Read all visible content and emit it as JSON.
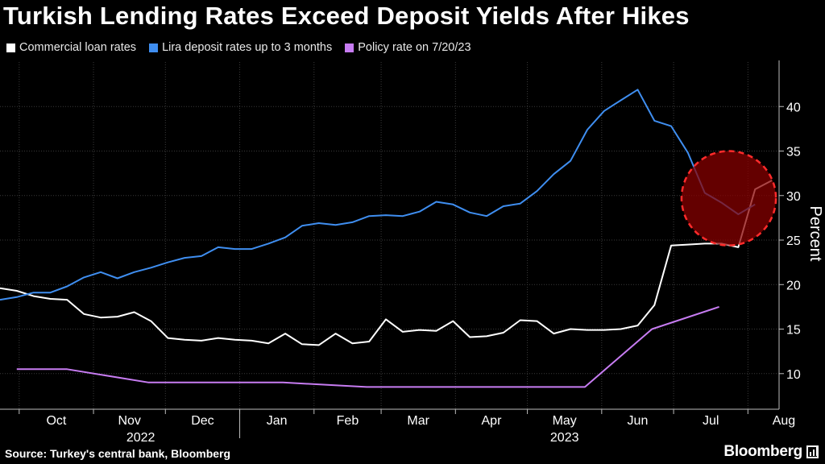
{
  "chart_data": {
    "type": "line",
    "title": "Turkish Lending Rates Exceed Deposit Yields After Hikes",
    "ylabel": "Percent",
    "ylim": [
      6,
      45
    ],
    "yticks": [
      10,
      15,
      20,
      25,
      30,
      35,
      40
    ],
    "month_ticks": [
      "Oct",
      "Nov",
      "Dec",
      "Jan",
      "Feb",
      "Mar",
      "Apr",
      "May",
      "Jun",
      "Jul",
      "Aug"
    ],
    "year_labels": [
      {
        "label": "2022",
        "month": "Nov"
      },
      {
        "label": "2023",
        "month": "May"
      }
    ],
    "x_range": [
      "2022-09-23",
      "2023-08-14"
    ],
    "grid": true,
    "legend_position": "top-left",
    "series": [
      {
        "name": "Commercial loan rates",
        "color": "#ffffff",
        "points": [
          [
            "2022-09-23",
            19.6
          ],
          [
            "2022-09-30",
            19.3
          ],
          [
            "2022-10-07",
            18.7
          ],
          [
            "2022-10-14",
            18.4
          ],
          [
            "2022-10-21",
            18.3
          ],
          [
            "2022-10-28",
            16.7
          ],
          [
            "2022-11-04",
            16.3
          ],
          [
            "2022-11-11",
            16.4
          ],
          [
            "2022-11-18",
            16.9
          ],
          [
            "2022-11-25",
            15.9
          ],
          [
            "2022-12-02",
            14.0
          ],
          [
            "2022-12-09",
            13.8
          ],
          [
            "2022-12-16",
            13.7
          ],
          [
            "2022-12-23",
            14.0
          ],
          [
            "2022-12-30",
            13.8
          ],
          [
            "2023-01-06",
            13.7
          ],
          [
            "2023-01-13",
            13.4
          ],
          [
            "2023-01-20",
            14.5
          ],
          [
            "2023-01-27",
            13.3
          ],
          [
            "2023-02-03",
            13.2
          ],
          [
            "2023-02-10",
            14.5
          ],
          [
            "2023-02-17",
            13.4
          ],
          [
            "2023-02-24",
            13.6
          ],
          [
            "2023-03-03",
            16.1
          ],
          [
            "2023-03-10",
            14.7
          ],
          [
            "2023-03-17",
            14.9
          ],
          [
            "2023-03-24",
            14.8
          ],
          [
            "2023-03-31",
            15.9
          ],
          [
            "2023-04-07",
            14.1
          ],
          [
            "2023-04-14",
            14.2
          ],
          [
            "2023-04-21",
            14.6
          ],
          [
            "2023-04-28",
            16.0
          ],
          [
            "2023-05-05",
            15.9
          ],
          [
            "2023-05-12",
            14.5
          ],
          [
            "2023-05-19",
            15.0
          ],
          [
            "2023-05-26",
            14.9
          ],
          [
            "2023-06-02",
            14.9
          ],
          [
            "2023-06-09",
            15.0
          ],
          [
            "2023-06-16",
            15.4
          ],
          [
            "2023-06-23",
            17.7
          ],
          [
            "2023-06-30",
            24.4
          ],
          [
            "2023-07-07",
            24.5
          ],
          [
            "2023-07-14",
            24.6
          ],
          [
            "2023-07-21",
            24.6
          ],
          [
            "2023-07-28",
            24.2
          ],
          [
            "2023-08-04",
            30.7
          ],
          [
            "2023-08-11",
            31.7
          ]
        ]
      },
      {
        "name": "Lira deposit rates up to 3 months",
        "color": "#3f8ef0",
        "points": [
          [
            "2022-09-23",
            18.3
          ],
          [
            "2022-09-30",
            18.6
          ],
          [
            "2022-10-07",
            19.1
          ],
          [
            "2022-10-14",
            19.1
          ],
          [
            "2022-10-21",
            19.8
          ],
          [
            "2022-10-28",
            20.8
          ],
          [
            "2022-11-04",
            21.4
          ],
          [
            "2022-11-11",
            20.7
          ],
          [
            "2022-11-18",
            21.4
          ],
          [
            "2022-11-25",
            21.9
          ],
          [
            "2022-12-02",
            22.5
          ],
          [
            "2022-12-09",
            23.0
          ],
          [
            "2022-12-16",
            23.2
          ],
          [
            "2022-12-23",
            24.2
          ],
          [
            "2022-12-30",
            24.0
          ],
          [
            "2023-01-06",
            24.0
          ],
          [
            "2023-01-13",
            24.6
          ],
          [
            "2023-01-20",
            25.3
          ],
          [
            "2023-01-27",
            26.6
          ],
          [
            "2023-02-03",
            26.9
          ],
          [
            "2023-02-10",
            26.7
          ],
          [
            "2023-02-17",
            27.0
          ],
          [
            "2023-02-24",
            27.7
          ],
          [
            "2023-03-03",
            27.8
          ],
          [
            "2023-03-10",
            27.7
          ],
          [
            "2023-03-17",
            28.2
          ],
          [
            "2023-03-24",
            29.3
          ],
          [
            "2023-03-31",
            29.0
          ],
          [
            "2023-04-07",
            28.1
          ],
          [
            "2023-04-14",
            27.7
          ],
          [
            "2023-04-21",
            28.8
          ],
          [
            "2023-04-28",
            29.1
          ],
          [
            "2023-05-05",
            30.5
          ],
          [
            "2023-05-12",
            32.4
          ],
          [
            "2023-05-19",
            33.9
          ],
          [
            "2023-05-26",
            37.4
          ],
          [
            "2023-06-02",
            39.5
          ],
          [
            "2023-06-09",
            40.7
          ],
          [
            "2023-06-16",
            41.9
          ],
          [
            "2023-06-23",
            38.4
          ],
          [
            "2023-06-30",
            37.8
          ],
          [
            "2023-07-07",
            34.8
          ],
          [
            "2023-07-14",
            30.3
          ],
          [
            "2023-07-21",
            29.2
          ],
          [
            "2023-07-28",
            27.9
          ],
          [
            "2023-08-04",
            29.0
          ]
        ]
      },
      {
        "name": "Policy rate on 7/20/23",
        "color": "#c77cf2",
        "points": [
          [
            "2022-09-30",
            10.5
          ],
          [
            "2022-10-20",
            10.5
          ],
          [
            "2022-10-21",
            10.5
          ],
          [
            "2022-11-24",
            9.0
          ],
          [
            "2022-12-22",
            9.0
          ],
          [
            "2023-01-19",
            9.0
          ],
          [
            "2023-02-23",
            8.5
          ],
          [
            "2023-03-23",
            8.5
          ],
          [
            "2023-04-27",
            8.5
          ],
          [
            "2023-05-25",
            8.5
          ],
          [
            "2023-06-22",
            15.0
          ],
          [
            "2023-07-20",
            17.5
          ]
        ]
      }
    ],
    "annotation": {
      "type": "circle",
      "center": [
        "2023-07-24",
        29.7
      ],
      "radius_y": 5.3,
      "fill": "#8b0000",
      "stroke": "#ff2b2b"
    }
  },
  "source": "Source: Turkey's central bank, Bloomberg",
  "brand": "Bloomberg"
}
